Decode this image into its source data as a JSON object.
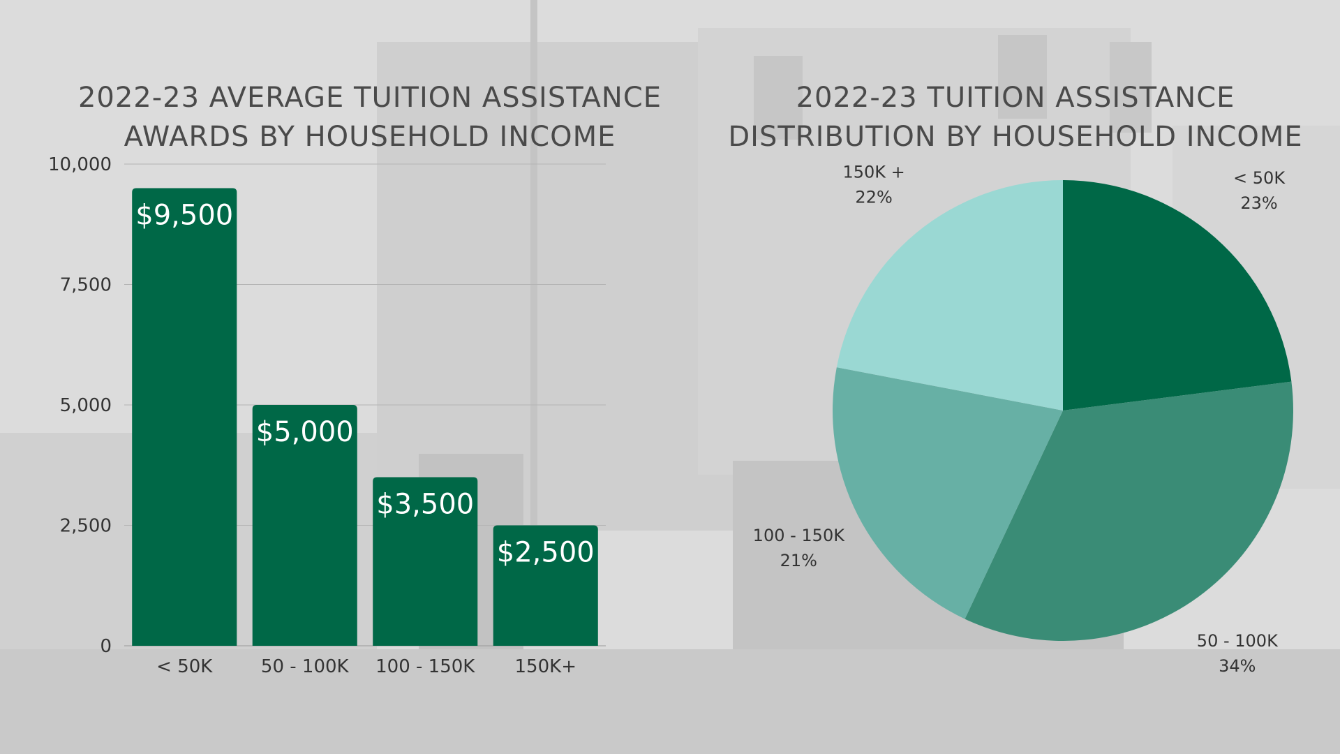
{
  "chart_data": [
    {
      "type": "bar",
      "title_lines": [
        "2022-23 AVERAGE TUITION ASSISTANCE",
        "AWARDS BY HOUSEHOLD INCOME"
      ],
      "categories": [
        "< 50K",
        "50 - 100K",
        "100 - 150K",
        "150K+"
      ],
      "values": [
        9500,
        5000,
        3500,
        2500
      ],
      "data_labels": [
        "$9,500",
        "$5,000",
        "$3,500",
        "$2,500"
      ],
      "ylim": [
        0,
        10000
      ],
      "yticks": [
        0,
        2500,
        5000,
        7500,
        10000
      ],
      "ytick_labels": [
        "0",
        "2,500",
        "5,000",
        "7,500",
        "10,000"
      ],
      "grid": true,
      "bar_color": "#006847",
      "xlabel": "",
      "ylabel": ""
    },
    {
      "type": "pie",
      "title_lines": [
        "2022-23 TUITION ASSISTANCE",
        "DISTRIBUTION BY HOUSEHOLD INCOME"
      ],
      "slices": [
        {
          "label": "< 50K",
          "percent_label": "23%",
          "value": 23,
          "color": "#006847"
        },
        {
          "label": "50 - 100K",
          "percent_label": "34%",
          "value": 34,
          "color": "#3a8c76"
        },
        {
          "label": "100 - 150K",
          "percent_label": "21%",
          "value": 21,
          "color": "#67b0a5"
        },
        {
          "label": "150K +",
          "percent_label": "22%",
          "value": 22,
          "color": "#9ad8d3"
        }
      ]
    }
  ],
  "colors": {
    "title_text": "#4a4a4a",
    "axis_text": "#333333",
    "data_label_text": "#ffffff",
    "background": "#d9d9d9"
  }
}
